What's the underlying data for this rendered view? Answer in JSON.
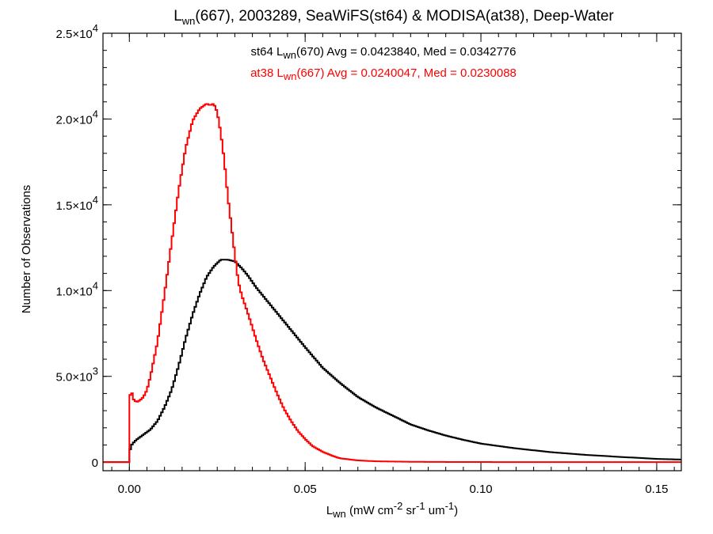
{
  "chart_data": {
    "type": "line",
    "title": {
      "pre": "L",
      "sub": "wn",
      "post": "(667), 2003289, SeaWiFS(st64) & MODISA(at38), Deep-Water"
    },
    "xlabel": {
      "pre": "L",
      "sub": "wn",
      "mid1": " (mW cm",
      "sup1": "-2",
      "mid2": " sr",
      "sup2": "-1",
      "mid3": " um",
      "sup3": "-1",
      "post": ")"
    },
    "ylabel": "Number of Observations",
    "xlim": [
      -0.0075,
      0.157
    ],
    "ylim": [
      -500,
      25000
    ],
    "x_ticks": [
      {
        "value": 0.0,
        "label": "0.00"
      },
      {
        "value": 0.05,
        "label": "0.05"
      },
      {
        "value": 0.1,
        "label": "0.10"
      },
      {
        "value": 0.15,
        "label": "0.15"
      }
    ],
    "x_minor_step": 0.005,
    "y_ticks": [
      {
        "value": 0,
        "label": "0",
        "exp": ""
      },
      {
        "value": 5000,
        "label": "5.0×10",
        "exp": "3"
      },
      {
        "value": 10000,
        "label": "1.0×10",
        "exp": "4"
      },
      {
        "value": 15000,
        "label": "1.5×10",
        "exp": "4"
      },
      {
        "value": 20000,
        "label": "2.0×10",
        "exp": "4"
      },
      {
        "value": 25000,
        "label": "2.5×10",
        "exp": "4"
      }
    ],
    "y_minor_step": 1000,
    "step_width": 0.0005,
    "annotations": [
      {
        "pre": "st64 L",
        "sub": "wn",
        "post": "(670) Avg = 0.0423840, Med = 0.0342776",
        "color": "#000000"
      },
      {
        "pre": "at38 L",
        "sub": "wn",
        "post": "(667) Avg = 0.0240047, Med = 0.0230088",
        "color": "#ff0000"
      }
    ],
    "series": [
      {
        "color": "#000000",
        "x": [
          0.0,
          0.0003,
          0.001,
          0.002,
          0.004,
          0.006,
          0.008,
          0.01,
          0.012,
          0.014,
          0.016,
          0.018,
          0.02,
          0.022,
          0.024,
          0.026,
          0.028,
          0.03,
          0.032,
          0.034,
          0.036,
          0.038,
          0.04,
          0.042,
          0.044,
          0.046,
          0.048,
          0.05,
          0.055,
          0.06,
          0.065,
          0.07,
          0.075,
          0.08,
          0.085,
          0.09,
          0.095,
          0.1,
          0.11,
          0.12,
          0.13,
          0.14,
          0.15,
          0.157
        ],
        "y": [
          0,
          900,
          1100,
          1300,
          1600,
          1900,
          2400,
          3200,
          4200,
          5600,
          7200,
          8600,
          9800,
          10800,
          11400,
          11800,
          11800,
          11700,
          11300,
          10800,
          10200,
          9700,
          9200,
          8700,
          8200,
          7700,
          7200,
          6700,
          5500,
          4600,
          3800,
          3200,
          2700,
          2200,
          1850,
          1550,
          1300,
          1080,
          800,
          580,
          420,
          300,
          190,
          150
        ]
      },
      {
        "color": "#ff0000",
        "x": [
          0.0,
          0.0003,
          0.0006,
          0.001,
          0.002,
          0.003,
          0.004,
          0.005,
          0.006,
          0.008,
          0.01,
          0.012,
          0.014,
          0.016,
          0.018,
          0.02,
          0.022,
          0.023,
          0.024,
          0.025,
          0.026,
          0.027,
          0.028,
          0.029,
          0.03,
          0.031,
          0.032,
          0.034,
          0.036,
          0.038,
          0.04,
          0.042,
          0.044,
          0.046,
          0.048,
          0.05,
          0.052,
          0.055,
          0.058,
          0.06,
          0.065,
          0.07,
          0.08,
          0.09,
          0.1,
          0.12,
          0.157
        ],
        "y": [
          0,
          4700,
          4200,
          3700,
          3500,
          3600,
          3800,
          4200,
          5000,
          7000,
          9800,
          12800,
          15800,
          18300,
          19900,
          20600,
          20900,
          20800,
          20900,
          20400,
          19200,
          17600,
          15500,
          13800,
          12100,
          10500,
          9700,
          8500,
          7200,
          6000,
          5000,
          4000,
          3100,
          2400,
          1800,
          1350,
          950,
          600,
          350,
          220,
          100,
          50,
          20,
          10,
          5,
          0,
          0
        ]
      }
    ]
  }
}
